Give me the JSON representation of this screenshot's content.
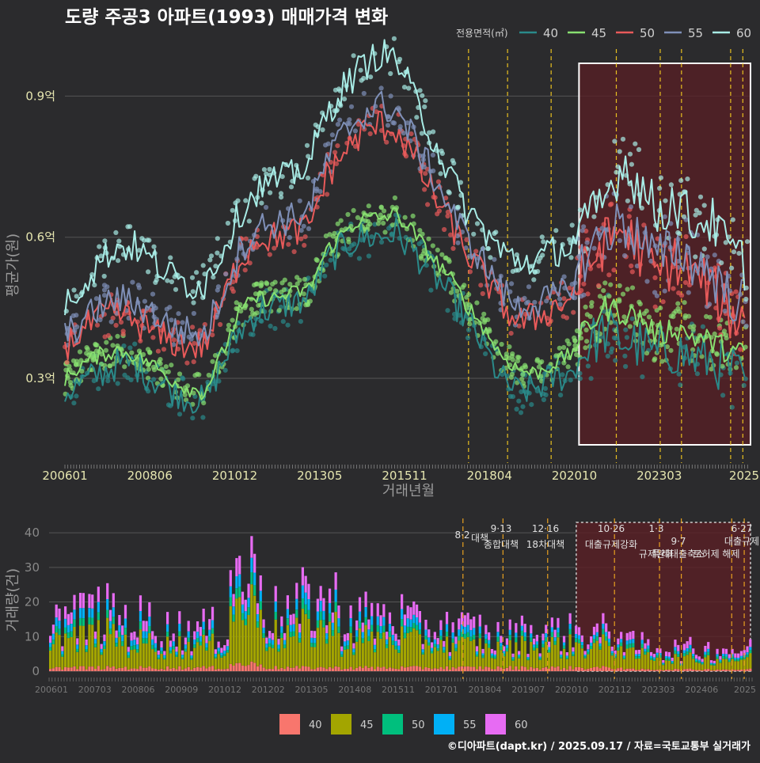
{
  "chart_data": [
    {
      "type": "line",
      "title": "도량 주공3 아파트(1993) 매매가격 변화",
      "xlabel": "거래년월",
      "ylabel": "평균가(원)",
      "x_tick_labels": [
        "200601",
        "200806",
        "201012",
        "201305",
        "201511",
        "201804",
        "202010",
        "202303",
        "2025"
      ],
      "y_ticks": [
        0.3,
        0.6,
        0.9
      ],
      "y_tick_labels": [
        "0.3억",
        "0.6억",
        "0.9억"
      ],
      "ylim": [
        0.12,
        1.0
      ],
      "xlim": [
        2006.0,
        2025.67
      ],
      "legend_title": "전용면적(㎡)",
      "highlight_range": [
        2020.75,
        2025.75
      ],
      "policy_dates": [
        2017.58,
        2018.7,
        2019.95,
        2021.82,
        2023.08,
        2023.69,
        2025.1,
        2025.45
      ],
      "series": [
        {
          "name": "40",
          "color": "#2a8a8a",
          "x": [
            2006.0,
            2006.5,
            2007.0,
            2007.5,
            2008.0,
            2008.5,
            2009.0,
            2009.5,
            2010.0,
            2010.5,
            2011.0,
            2011.5,
            2012.0,
            2012.5,
            2013.0,
            2013.5,
            2014.0,
            2014.5,
            2015.0,
            2015.5,
            2016.0,
            2016.5,
            2017.0,
            2017.5,
            2018.0,
            2018.5,
            2019.0,
            2019.5,
            2020.0,
            2020.5,
            2021.0,
            2021.5,
            2022.0,
            2022.5,
            2023.0,
            2023.5,
            2024.0,
            2024.5,
            2025.0,
            2025.5
          ],
          "values": [
            0.27,
            0.29,
            0.31,
            0.33,
            0.33,
            0.3,
            0.28,
            0.26,
            0.25,
            0.33,
            0.4,
            0.44,
            0.45,
            0.46,
            0.47,
            0.55,
            0.58,
            0.6,
            0.6,
            0.61,
            0.57,
            0.53,
            0.48,
            0.43,
            0.37,
            0.3,
            0.27,
            0.28,
            0.3,
            0.31,
            0.37,
            0.4,
            0.38,
            0.37,
            0.35,
            0.36,
            0.34,
            0.34,
            0.32,
            0.3
          ]
        },
        {
          "name": "45",
          "color": "#88e070",
          "x": [
            2006.0,
            2006.5,
            2007.0,
            2007.5,
            2008.0,
            2008.5,
            2009.0,
            2009.5,
            2010.0,
            2010.5,
            2011.0,
            2011.5,
            2012.0,
            2012.5,
            2013.0,
            2013.5,
            2014.0,
            2014.5,
            2015.0,
            2015.5,
            2016.0,
            2016.5,
            2017.0,
            2017.5,
            2018.0,
            2018.5,
            2019.0,
            2019.5,
            2020.0,
            2020.5,
            2021.0,
            2021.5,
            2022.0,
            2022.5,
            2023.0,
            2023.5,
            2024.0,
            2024.5,
            2025.0,
            2025.5
          ],
          "values": [
            0.3,
            0.33,
            0.35,
            0.36,
            0.35,
            0.33,
            0.3,
            0.28,
            0.27,
            0.35,
            0.44,
            0.47,
            0.47,
            0.48,
            0.49,
            0.57,
            0.61,
            0.64,
            0.64,
            0.65,
            0.61,
            0.56,
            0.52,
            0.46,
            0.41,
            0.35,
            0.32,
            0.31,
            0.33,
            0.35,
            0.41,
            0.45,
            0.44,
            0.43,
            0.39,
            0.41,
            0.39,
            0.38,
            0.36,
            0.35
          ]
        },
        {
          "name": "50",
          "color": "#e85a5a",
          "x": [
            2006.0,
            2006.5,
            2007.0,
            2007.5,
            2008.0,
            2008.5,
            2009.0,
            2009.5,
            2010.0,
            2010.5,
            2011.0,
            2011.5,
            2012.0,
            2012.5,
            2013.0,
            2013.5,
            2014.0,
            2014.5,
            2015.0,
            2015.5,
            2016.0,
            2016.5,
            2017.0,
            2017.5,
            2018.0,
            2018.5,
            2019.0,
            2019.5,
            2020.0,
            2020.5,
            2021.0,
            2021.5,
            2022.0,
            2022.5,
            2023.0,
            2023.5,
            2024.0,
            2024.5,
            2025.0,
            2025.5
          ],
          "values": [
            0.37,
            0.4,
            0.43,
            0.44,
            0.42,
            0.4,
            0.38,
            0.37,
            0.37,
            0.46,
            0.55,
            0.6,
            0.6,
            0.61,
            0.62,
            0.73,
            0.78,
            0.82,
            0.84,
            0.83,
            0.77,
            0.7,
            0.64,
            0.57,
            0.52,
            0.46,
            0.42,
            0.43,
            0.45,
            0.47,
            0.54,
            0.59,
            0.62,
            0.57,
            0.52,
            0.55,
            0.52,
            0.5,
            0.44,
            0.42
          ]
        },
        {
          "name": "55",
          "color": "#7f90b8",
          "x": [
            2006.0,
            2006.5,
            2007.0,
            2007.5,
            2008.0,
            2008.5,
            2009.0,
            2009.5,
            2010.0,
            2010.5,
            2011.0,
            2011.5,
            2012.0,
            2012.5,
            2013.0,
            2013.5,
            2014.0,
            2014.5,
            2015.0,
            2015.5,
            2016.0,
            2016.5,
            2017.0,
            2017.5,
            2018.0,
            2018.5,
            2019.0,
            2019.5,
            2020.0,
            2020.5,
            2021.0,
            2021.5,
            2022.0,
            2022.5,
            2023.0,
            2023.5,
            2024.0,
            2024.5,
            2025.0,
            2025.5
          ],
          "values": [
            0.39,
            0.42,
            0.45,
            0.47,
            0.46,
            0.44,
            0.41,
            0.4,
            0.39,
            0.48,
            0.57,
            0.62,
            0.63,
            0.64,
            0.66,
            0.76,
            0.82,
            0.86,
            0.88,
            0.87,
            0.81,
            0.74,
            0.67,
            0.6,
            0.55,
            0.49,
            0.45,
            0.46,
            0.47,
            0.49,
            0.57,
            0.61,
            0.63,
            0.6,
            0.55,
            0.58,
            0.55,
            0.53,
            0.48,
            0.46
          ]
        },
        {
          "name": "60",
          "color": "#a8ece6",
          "x": [
            2006.0,
            2006.5,
            2007.0,
            2007.5,
            2008.0,
            2008.5,
            2009.0,
            2009.5,
            2010.0,
            2010.5,
            2011.0,
            2011.5,
            2012.0,
            2012.5,
            2013.0,
            2013.5,
            2014.0,
            2014.5,
            2015.0,
            2015.5,
            2016.0,
            2016.5,
            2017.0,
            2017.5,
            2018.0,
            2018.5,
            2019.0,
            2019.5,
            2020.0,
            2020.5,
            2021.0,
            2021.5,
            2022.0,
            2022.5,
            2023.0,
            2023.5,
            2024.0,
            2024.5,
            2025.0,
            2025.5
          ],
          "values": [
            0.46,
            0.5,
            0.55,
            0.58,
            0.58,
            0.55,
            0.52,
            0.5,
            0.5,
            0.57,
            0.65,
            0.7,
            0.72,
            0.73,
            0.76,
            0.86,
            0.92,
            0.96,
            0.99,
            0.98,
            0.9,
            0.82,
            0.74,
            0.66,
            0.62,
            0.57,
            0.55,
            0.55,
            0.57,
            0.58,
            0.63,
            0.68,
            0.76,
            0.71,
            0.65,
            0.68,
            0.63,
            0.64,
            0.58,
            0.54
          ]
        }
      ]
    },
    {
      "type": "bar",
      "stacked": true,
      "ylabel": "거래량(건)",
      "x_tick_labels": [
        "200601",
        "200703",
        "200806",
        "200909",
        "201012",
        "201202",
        "201305",
        "201408",
        "201511",
        "201701",
        "201804",
        "201907",
        "202010",
        "202112",
        "202303",
        "202406",
        "2025"
      ],
      "y_ticks": [
        0,
        10,
        20,
        30,
        40
      ],
      "ylim": [
        0,
        43
      ],
      "highlight_range": [
        2020.75,
        2025.75
      ],
      "categories": [
        "2006",
        "2007",
        "2008",
        "2009",
        "2010",
        "2011",
        "2012",
        "2013",
        "2014",
        "2015",
        "2016",
        "2017",
        "2018",
        "2019",
        "2020",
        "2021",
        "2022",
        "2023",
        "2024",
        "2025"
      ],
      "series": [
        {
          "name": "40",
          "color": "#f8766d",
          "values": [
            1,
            1,
            1,
            1,
            1,
            2,
            1,
            1,
            1,
            1,
            1,
            1,
            1,
            1,
            1,
            1,
            0.5,
            0.5,
            0.5,
            0.5
          ]
        },
        {
          "name": "45",
          "color": "#a3a500",
          "values": [
            8,
            9,
            7,
            6,
            6,
            16,
            9,
            11,
            8,
            8,
            7,
            6,
            5,
            6,
            6,
            6,
            4,
            3,
            3,
            3
          ]
        },
        {
          "name": "50",
          "color": "#00bf7d",
          "values": [
            1.5,
            1.5,
            1.5,
            1,
            1,
            2.5,
            1.5,
            2,
            1.5,
            1.5,
            1,
            1,
            1,
            1,
            1,
            1,
            0.8,
            0.7,
            0.7,
            0.6
          ]
        },
        {
          "name": "55",
          "color": "#00b0f6",
          "values": [
            2,
            2,
            2,
            1.5,
            1.5,
            3,
            2,
            2.5,
            2,
            2,
            1.5,
            1.5,
            1,
            1,
            1,
            1,
            0.8,
            0.7,
            0.7,
            0.6
          ]
        },
        {
          "name": "60",
          "color": "#e76bf3",
          "values": [
            3,
            3,
            3,
            2.5,
            2.5,
            4.5,
            3,
            3.5,
            3,
            3,
            2.5,
            2.5,
            2,
            2,
            2,
            2,
            1.5,
            1.5,
            1.5,
            1.5
          ]
        }
      ],
      "policy_labels": [
        {
          "date": "8·2",
          "text": "대책"
        },
        {
          "date": "9·13",
          "text": "종합대책"
        },
        {
          "date": "12·16",
          "text": "18차대책"
        },
        {
          "date": "10·26",
          "text": "대출규제강화"
        },
        {
          "date": "1·3",
          "text": "규제완화"
        },
        {
          "date": "9·7",
          "text": "특례대출축소"
        },
        {
          "date": "",
          "text": "토허제 해제"
        },
        {
          "date": "6·27",
          "text": "대출규제"
        }
      ]
    }
  ],
  "credit": "©디아파트(dapt.kr) / 2025.09.17 / 자료=국토교통부 실거래가"
}
